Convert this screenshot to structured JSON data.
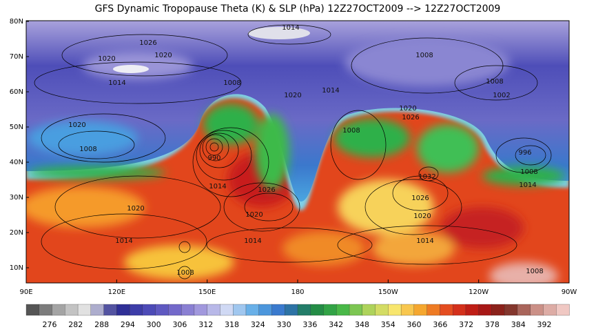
{
  "title": "GFS Dynamic Tropopause Theta (K) & SLP (hPa) 12Z27OCT2009 --> 12Z27OCT2009",
  "lat_labels": [
    "80N",
    "70N",
    "60N",
    "50N",
    "40N",
    "30N",
    "20N",
    "10N"
  ],
  "lon_labels": [
    "90E",
    "120E",
    "150E",
    "180",
    "150W",
    "120W",
    "90W"
  ],
  "colorbar": {
    "ticks": [
      276,
      282,
      288,
      294,
      300,
      306,
      312,
      318,
      324,
      330,
      336,
      342,
      348,
      354,
      360,
      366,
      372,
      378,
      384,
      392
    ]
  },
  "contour_labels": [
    "1014",
    "1026",
    "1020",
    "1020",
    "1014",
    "1008",
    "1020",
    "1014",
    "1008",
    "1008",
    "1002",
    "1020",
    "1026",
    "1020",
    "1008",
    "990",
    "1008",
    "996",
    "1032",
    "1008",
    "1014",
    "1014",
    "1026",
    "1026",
    "1020",
    "1020",
    "1020",
    "1014",
    "1014",
    "1014",
    "1008",
    "1008"
  ]
}
